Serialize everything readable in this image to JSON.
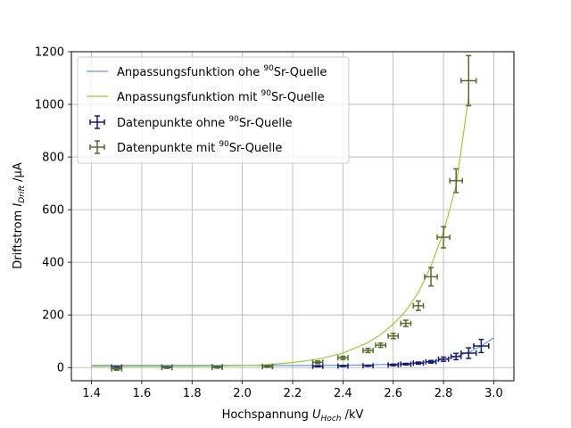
{
  "chart_data": {
    "type": "scatter",
    "xlabel": {
      "main": "Hochspannung ",
      "var": "U",
      "sub": "Hoch",
      "unit": " /kV"
    },
    "ylabel": {
      "main": "Driftstrom ",
      "var": "I",
      "sub": "Drift",
      "unit": " /µA"
    },
    "xlim": [
      1.32,
      3.08
    ],
    "ylim": [
      -50,
      1200
    ],
    "xticks": [
      1.4,
      1.6,
      1.8,
      2.0,
      2.2,
      2.4,
      2.6,
      2.8,
      3.0
    ],
    "xtick_labels": [
      "1.4",
      "1.6",
      "1.8",
      "2.0",
      "2.2",
      "2.4",
      "2.6",
      "2.8",
      "3.0"
    ],
    "yticks": [
      0,
      200,
      400,
      600,
      800,
      1000,
      1200
    ],
    "ytick_labels": [
      "0",
      "200",
      "400",
      "600",
      "800",
      "1000",
      "1200"
    ],
    "grid": true,
    "legend_position": "top-left",
    "legend": [
      {
        "pre": "Anpassungsfunktion ohe ",
        "sup": "90",
        "post": "Sr-Quelle",
        "kind": "line",
        "color": "#6495ed"
      },
      {
        "pre": "Anpassungsfunktion mit ",
        "sup": "90",
        "post": "Sr-Quelle",
        "kind": "line",
        "color": "#9acd32"
      },
      {
        "pre": "Datenpunkte ohne ",
        "sup": "90",
        "post": "Sr-Quelle",
        "kind": "errorbar",
        "color": "#191970"
      },
      {
        "pre": "Datenpunkte mit ",
        "sup": "90",
        "post": "Sr-Quelle",
        "kind": "errorbar",
        "color": "#556b2f"
      }
    ],
    "series": [
      {
        "kind": "fit",
        "color": "#6495ed",
        "x": [
          1.4,
          2.0,
          2.3,
          2.5,
          2.6,
          2.7,
          2.75,
          2.8,
          2.85,
          2.9,
          2.95,
          3.0
        ],
        "y": [
          8,
          8,
          8,
          10,
          13,
          18,
          23,
          31,
          42,
          58,
          82,
          113
        ]
      },
      {
        "kind": "fit",
        "color": "#9acd32",
        "x": [
          1.4,
          1.8,
          2.0,
          2.1,
          2.2,
          2.3,
          2.4,
          2.5,
          2.55,
          2.6,
          2.65,
          2.7,
          2.75,
          2.8,
          2.85,
          2.9
        ],
        "y": [
          5,
          5,
          7,
          11,
          19,
          32,
          55,
          95,
          125,
          165,
          215,
          285,
          385,
          515,
          690,
          1030
        ]
      },
      {
        "kind": "errorbar",
        "color": "#191970",
        "x": [
          1.5,
          1.7,
          1.9,
          2.1,
          2.3,
          2.4,
          2.5,
          2.6,
          2.65,
          2.7,
          2.75,
          2.8,
          2.85,
          2.9,
          2.95
        ],
        "y": [
          2,
          2,
          3,
          4,
          5,
          6,
          7,
          10,
          13,
          17,
          22,
          32,
          42,
          55,
          82
        ],
        "xerr": [
          0.02,
          0.02,
          0.02,
          0.02,
          0.02,
          0.02,
          0.02,
          0.02,
          0.02,
          0.02,
          0.02,
          0.02,
          0.02,
          0.03,
          0.03
        ],
        "yerr": [
          2,
          2,
          2,
          2,
          2,
          2,
          2,
          3,
          3,
          4,
          5,
          8,
          12,
          20,
          25
        ]
      },
      {
        "kind": "errorbar",
        "color": "#556b2f",
        "x": [
          1.5,
          1.7,
          1.9,
          2.1,
          2.3,
          2.4,
          2.5,
          2.55,
          2.6,
          2.65,
          2.7,
          2.75,
          2.8,
          2.85,
          2.9
        ],
        "y": [
          -5,
          0,
          1,
          5,
          20,
          37,
          65,
          85,
          120,
          168,
          235,
          345,
          495,
          710,
          1090
        ],
        "xerr": [
          0.02,
          0.02,
          0.02,
          0.02,
          0.02,
          0.02,
          0.02,
          0.02,
          0.02,
          0.02,
          0.02,
          0.025,
          0.025,
          0.025,
          0.03
        ],
        "yerr": [
          5,
          3,
          3,
          4,
          5,
          6,
          8,
          8,
          10,
          12,
          18,
          35,
          40,
          45,
          95
        ]
      }
    ]
  }
}
